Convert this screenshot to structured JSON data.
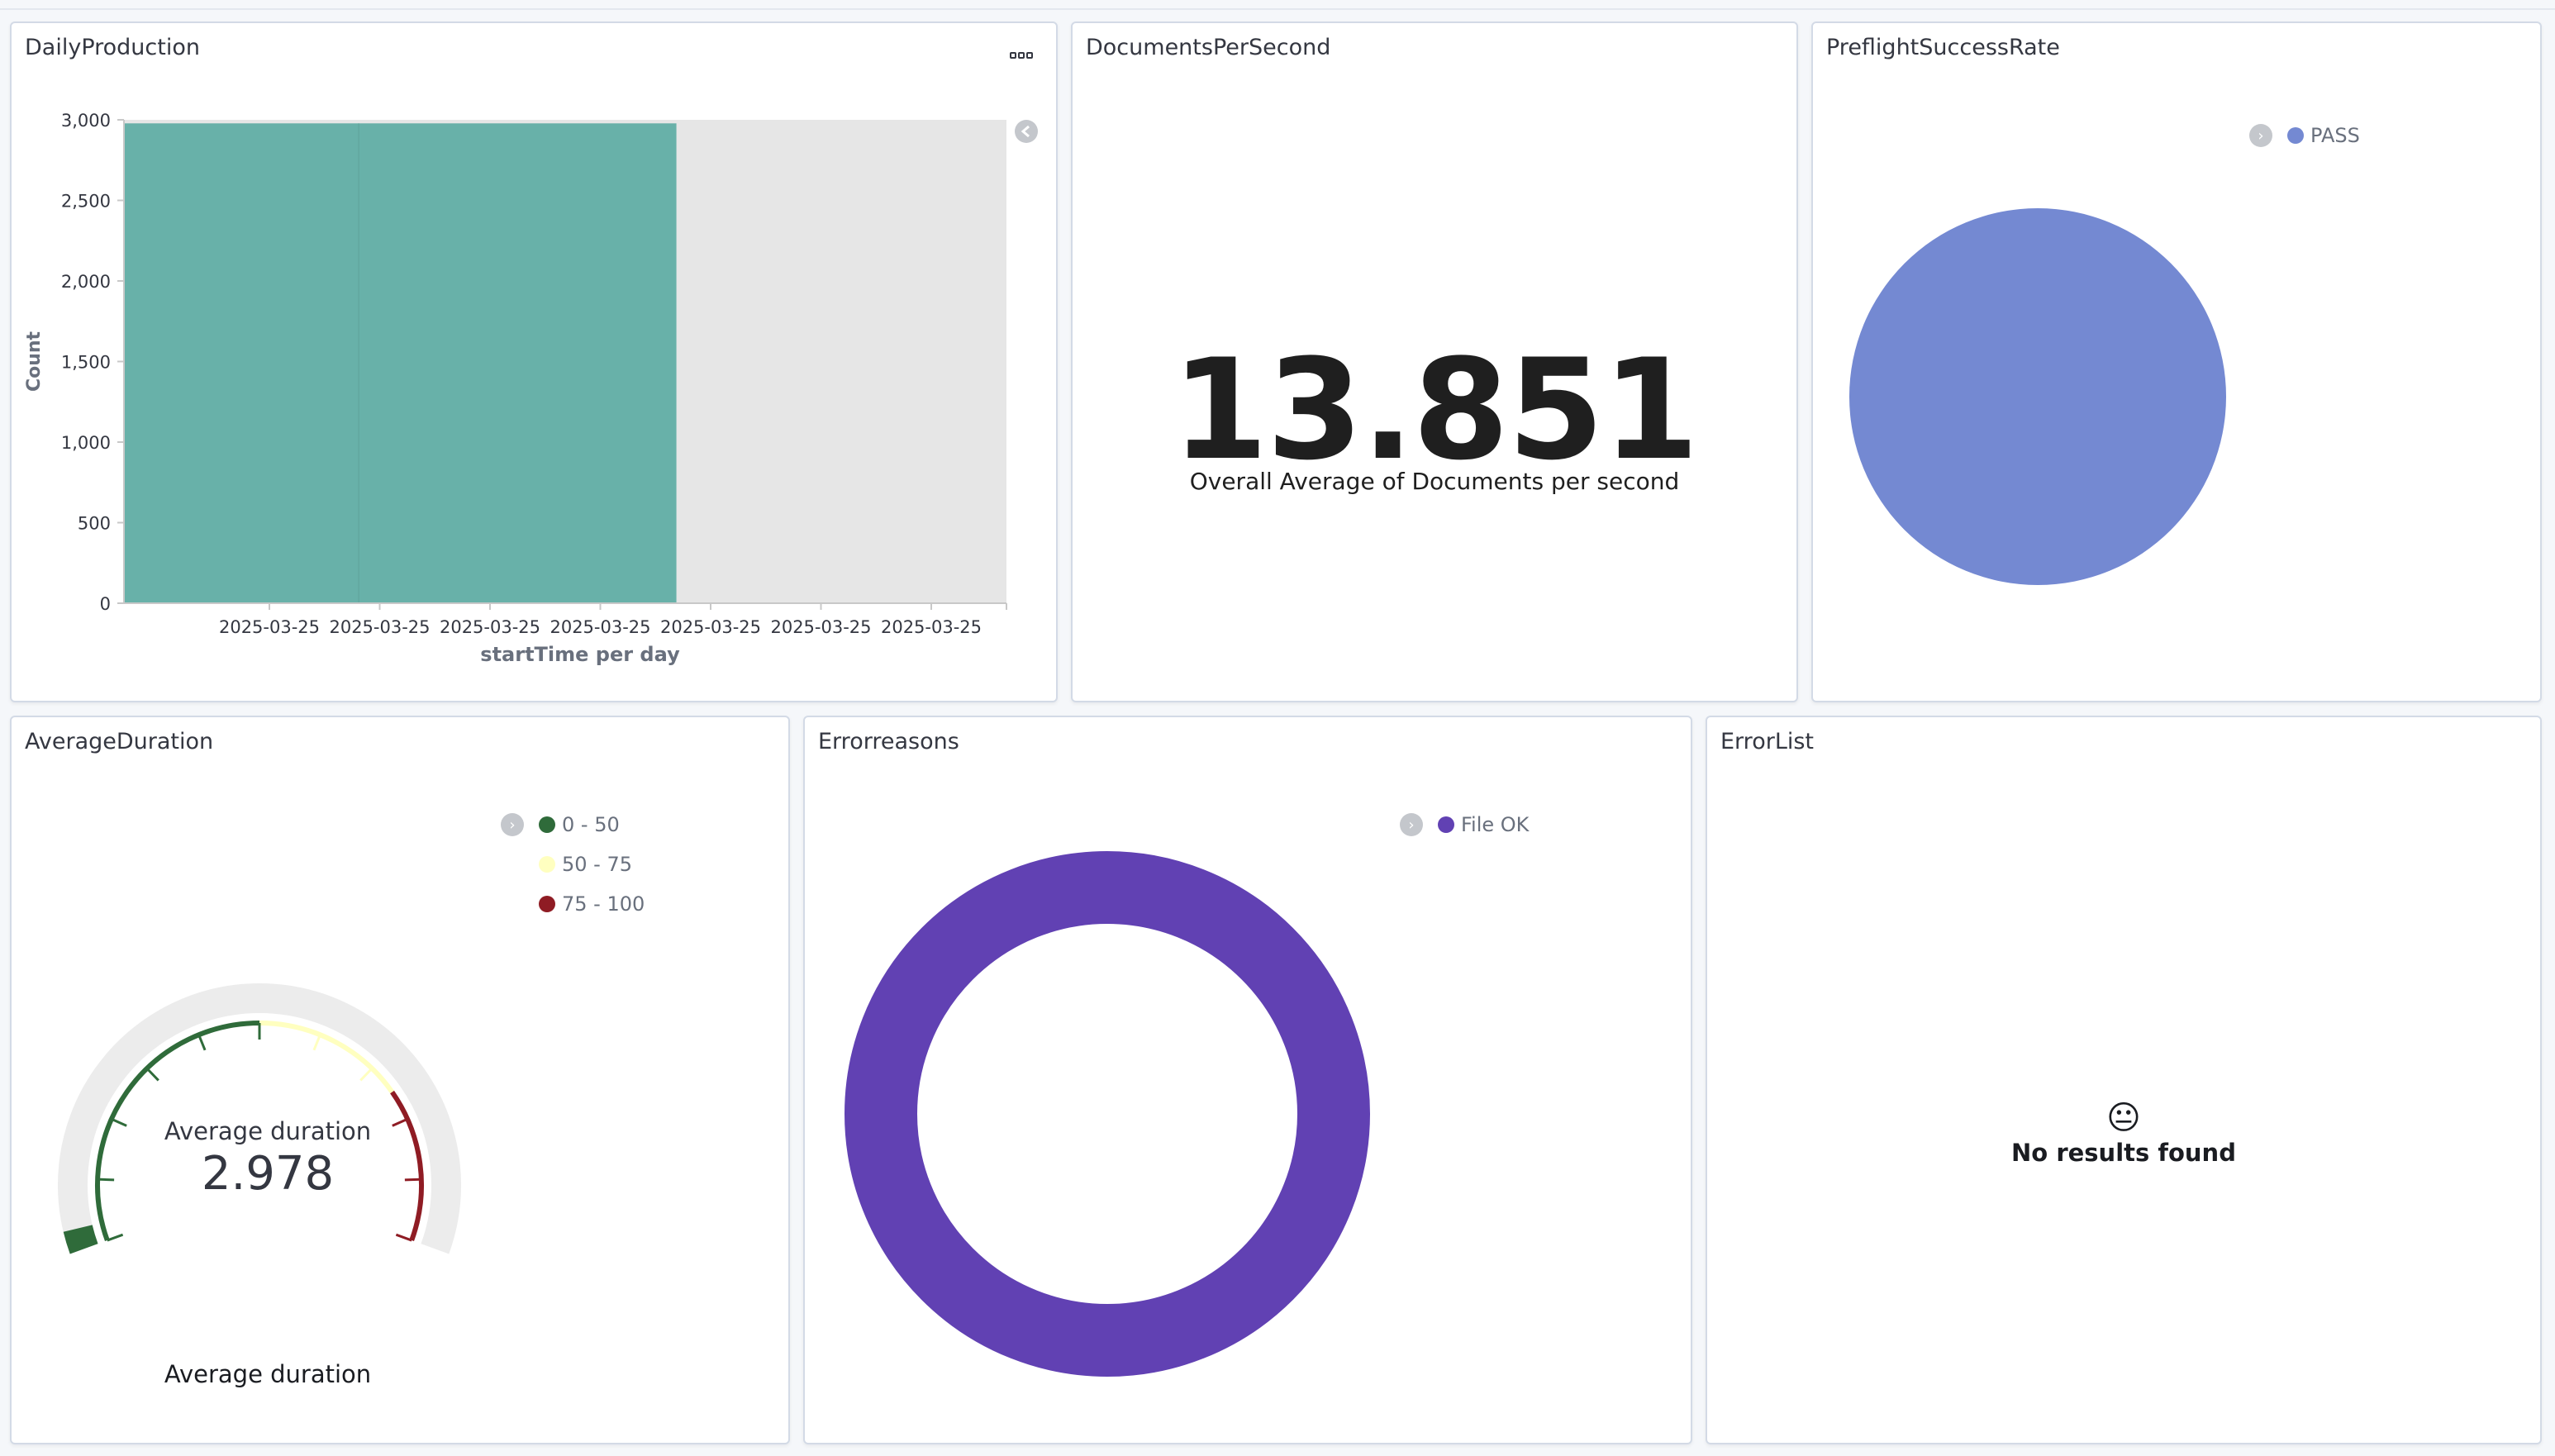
{
  "panels": {
    "daily_production": {
      "title": "DailyProduction"
    },
    "documents_per_second": {
      "title": "DocumentsPerSecond",
      "value": "13.851",
      "label": "Overall Average of Documents per second"
    },
    "preflight_success_rate": {
      "title": "PreflightSuccessRate",
      "legend": [
        {
          "label": "PASS",
          "color": "#7489d2"
        }
      ]
    },
    "average_duration": {
      "title": "AverageDuration",
      "gauge_label": "Average duration",
      "gauge_value": "2.978",
      "footer_label": "Average duration",
      "legend": [
        {
          "label": "0 - 50",
          "color": "#2f6b3a"
        },
        {
          "label": "50 - 75",
          "color": "#ffffc0"
        },
        {
          "label": "75 - 100",
          "color": "#8f1c24"
        }
      ]
    },
    "error_reasons": {
      "title": "Errorreasons",
      "legend": [
        {
          "label": "File OK",
          "color": "#6141b3"
        }
      ]
    },
    "error_list": {
      "title": "ErrorList",
      "empty_text": "No results found"
    }
  },
  "chart_data": [
    {
      "type": "bar",
      "title": "DailyProduction",
      "xlabel": "startTime per day",
      "ylabel": "Count",
      "ylim": [
        0,
        3000
      ],
      "yticks": [
        "0",
        "500",
        "1,000",
        "1,500",
        "2,000",
        "2,500",
        "3,000"
      ],
      "xticks": [
        "2025-03-25",
        "2025-03-25",
        "2025-03-25",
        "2025-03-25",
        "2025-03-25",
        "2025-03-25",
        "2025-03-25"
      ],
      "bars": [
        {
          "x_start": 0.0,
          "x_end": 0.266,
          "value": 2978,
          "color": "#68b1a9"
        },
        {
          "x_start": 0.266,
          "x_end": 0.626,
          "value": 2978,
          "color": "#68b1a9"
        }
      ],
      "empty_fill": "#e6e6e6"
    },
    {
      "type": "pie",
      "title": "PreflightSuccessRate",
      "slices": [
        {
          "label": "PASS",
          "value": 100,
          "color": "#7489d2"
        }
      ]
    },
    {
      "type": "gauge",
      "title": "AverageDuration",
      "range": [
        0,
        100
      ],
      "value": 2.978,
      "bands": [
        {
          "from": 0,
          "to": 50,
          "color": "#2f6b3a"
        },
        {
          "from": 50,
          "to": 75,
          "color": "#ffffc0"
        },
        {
          "from": 75,
          "to": 100,
          "color": "#8f1c24"
        }
      ]
    },
    {
      "type": "pie",
      "title": "Errorreasons",
      "donut": true,
      "slices": [
        {
          "label": "File OK",
          "value": 100,
          "color": "#6141b3"
        }
      ]
    }
  ]
}
